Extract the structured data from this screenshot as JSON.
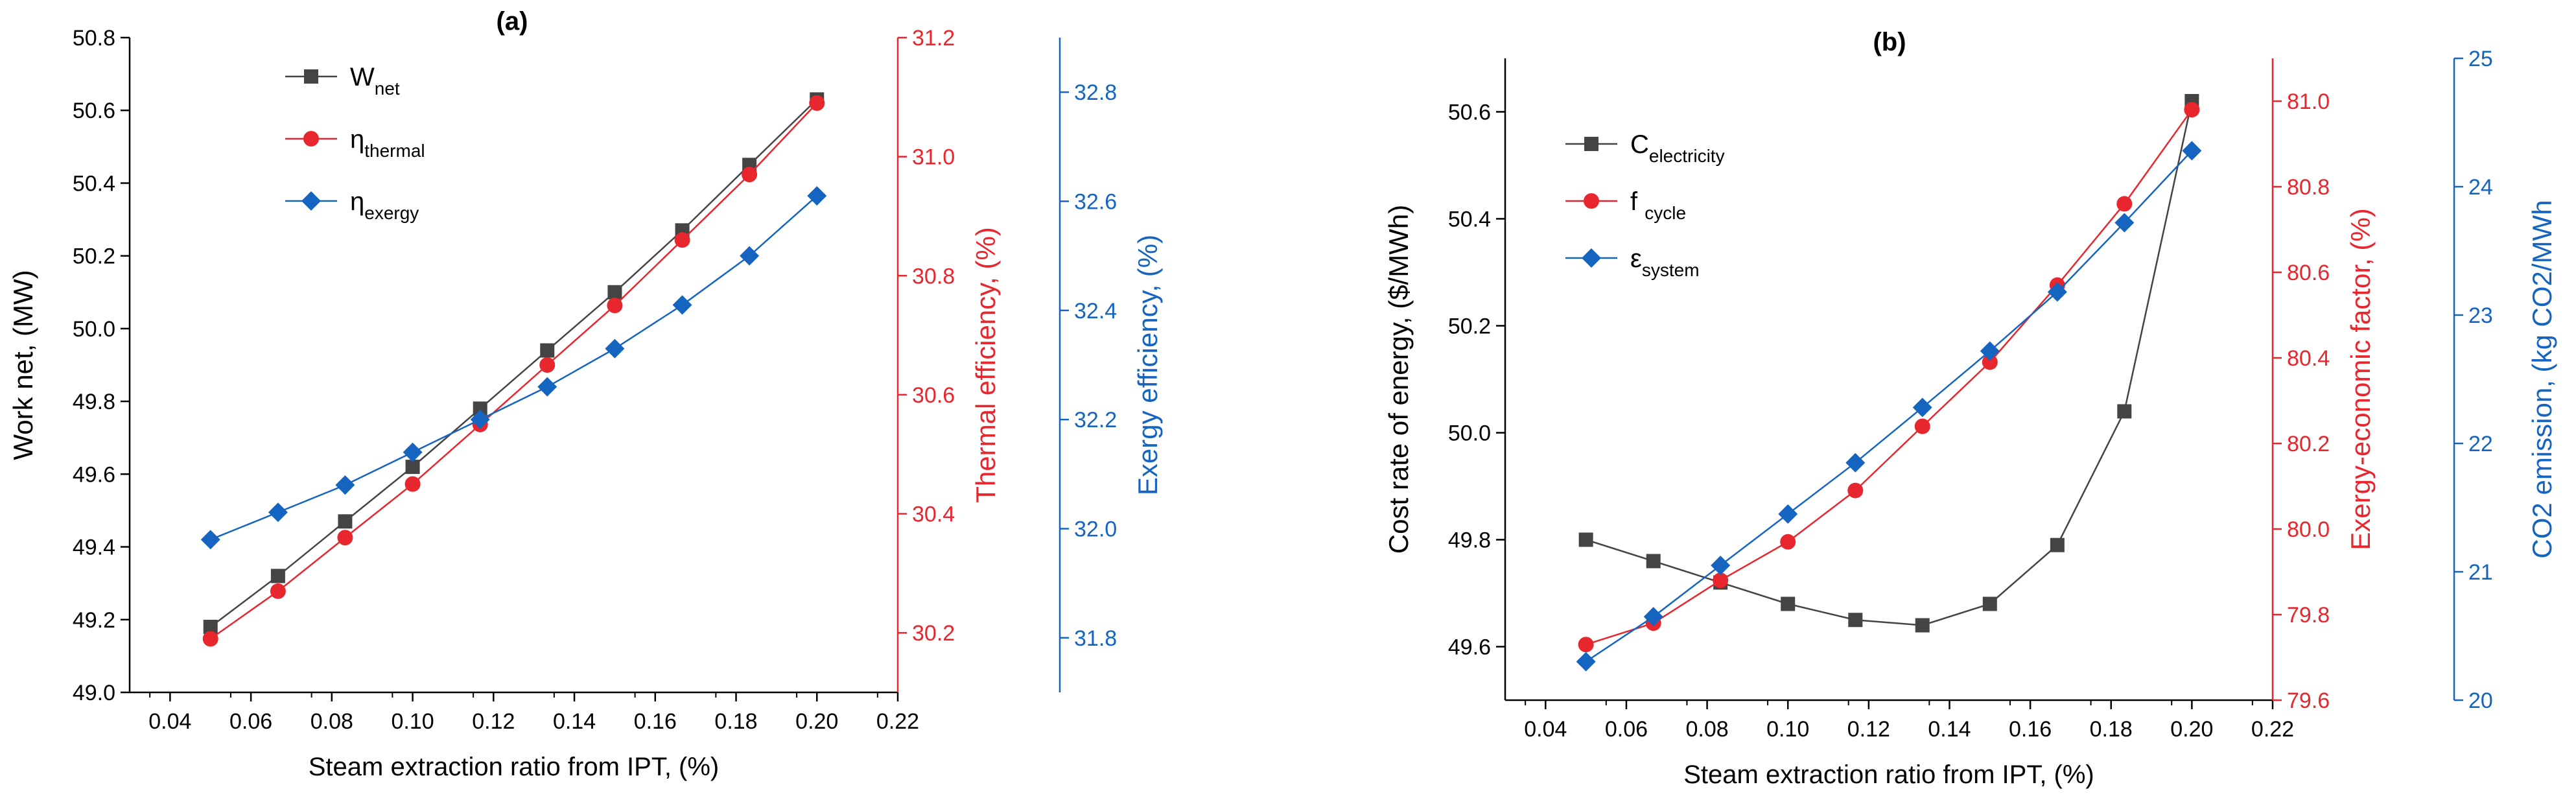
{
  "colors": {
    "black": "#444444",
    "red": "#e8262d",
    "blue": "#1565c0",
    "axis": "#000000"
  },
  "chart_data": [
    {
      "type": "line",
      "title": "(a)",
      "xlabel": "Steam extraction ratio from IPT, (%)",
      "xlim": [
        0.03,
        0.22
      ],
      "xticks": [
        "0.04",
        "0.06",
        "0.08",
        "0.10",
        "0.12",
        "0.14",
        "0.16",
        "0.18",
        "0.20",
        "0.22"
      ],
      "x": [
        0.05,
        0.0667,
        0.0833,
        0.1,
        0.1167,
        0.1333,
        0.15,
        0.1667,
        0.1833,
        0.2
      ],
      "axes": [
        {
          "label": "Work net, (MW)",
          "range": [
            49.0,
            50.8
          ],
          "ticks": [
            "49.0",
            "49.2",
            "49.4",
            "49.6",
            "49.8",
            "50.0",
            "50.2",
            "50.4",
            "50.6",
            "50.8"
          ]
        },
        {
          "label": "Thermal efficiency, (%)",
          "range": [
            30.1,
            31.2
          ],
          "ticks": [
            "30.2",
            "30.4",
            "30.6",
            "30.8",
            "31.0",
            "31.2"
          ]
        },
        {
          "label": "Exergy efficiency, (%)",
          "range": [
            31.7,
            32.9
          ],
          "ticks": [
            "31.8",
            "32.0",
            "32.2",
            "32.4",
            "32.6",
            "32.8"
          ]
        }
      ],
      "series": [
        {
          "name": "W",
          "sub": "net",
          "color": "black",
          "marker": "square",
          "axis": 0,
          "values": [
            49.18,
            49.32,
            49.47,
            49.62,
            49.78,
            49.94,
            50.1,
            50.27,
            50.45,
            50.63
          ]
        },
        {
          "name": "η",
          "sub": "thermal",
          "color": "red",
          "marker": "circle",
          "axis": 1,
          "values": [
            30.19,
            30.27,
            30.36,
            30.45,
            30.55,
            30.65,
            30.75,
            30.86,
            30.97,
            31.09
          ]
        },
        {
          "name": "η",
          "sub": "exergy",
          "color": "blue",
          "marker": "diamond",
          "axis": 2,
          "values": [
            31.98,
            32.03,
            32.08,
            32.14,
            32.2,
            32.26,
            32.33,
            32.41,
            32.5,
            32.61
          ]
        }
      ]
    },
    {
      "type": "line",
      "title": "(b)",
      "xlabel": "Steam extraction ratio from IPT, (%)",
      "xlim": [
        0.03,
        0.22
      ],
      "xticks": [
        "0.04",
        "0.06",
        "0.08",
        "0.10",
        "0.12",
        "0.14",
        "0.16",
        "0.18",
        "0.20",
        "0.22"
      ],
      "x": [
        0.05,
        0.0667,
        0.0833,
        0.1,
        0.1167,
        0.1333,
        0.15,
        0.1667,
        0.1833,
        0.2
      ],
      "axes": [
        {
          "label": "Cost rate of energy, ($/MWh)",
          "range": [
            49.5,
            50.7
          ],
          "ticks": [
            "49.6",
            "49.8",
            "50.0",
            "50.2",
            "50.4",
            "50.6"
          ]
        },
        {
          "label": "Exergy-economic factor, (%)",
          "range": [
            79.6,
            81.1
          ],
          "ticks": [
            "79.6",
            "79.8",
            "80.0",
            "80.2",
            "80.4",
            "80.6",
            "80.8",
            "81.0"
          ]
        },
        {
          "label": "CO2 emission, (kg CO2/MWh",
          "range": [
            20,
            25
          ],
          "ticks": [
            "20",
            "21",
            "22",
            "23",
            "24",
            "25"
          ]
        }
      ],
      "series": [
        {
          "name": "C",
          "sub": "electricity",
          "color": "black",
          "marker": "square",
          "axis": 0,
          "values": [
            49.8,
            49.76,
            49.72,
            49.68,
            49.65,
            49.64,
            49.68,
            49.79,
            50.04,
            50.62
          ]
        },
        {
          "name": "f ",
          "sub": "cycle",
          "color": "red",
          "marker": "circle",
          "axis": 1,
          "values": [
            79.73,
            79.78,
            79.88,
            79.97,
            80.09,
            80.24,
            80.39,
            80.57,
            80.76,
            80.98
          ]
        },
        {
          "name": "ε",
          "sub": "system",
          "color": "blue",
          "marker": "diamond",
          "axis": 2,
          "values": [
            20.3,
            20.65,
            21.05,
            21.45,
            21.85,
            22.28,
            22.72,
            23.18,
            23.72,
            24.28
          ]
        }
      ]
    }
  ]
}
